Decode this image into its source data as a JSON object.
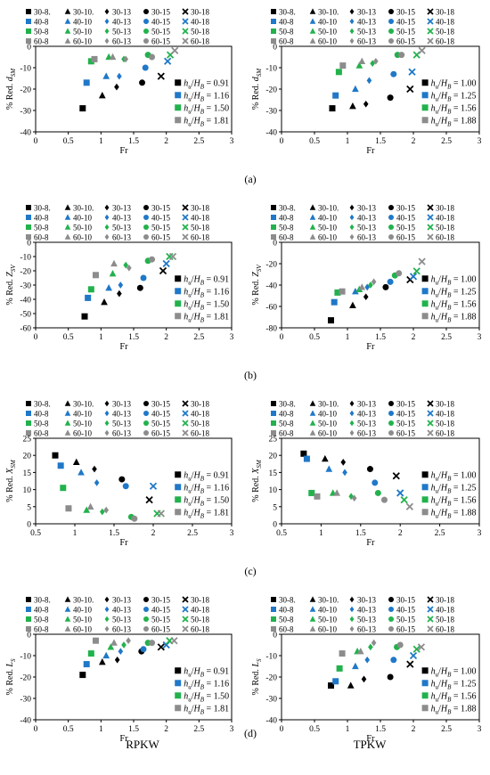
{
  "figure": {
    "colors": {
      "8": "#000000",
      "10": "#1f78c8",
      "13": "#22b24c",
      "15": "#8c8c8c",
      "18": "#a0a0a0"
    },
    "legend_rows": [
      {
        "color": "#000000",
        "items": [
          "30-8.",
          "30-10.",
          "30-13",
          "30-15",
          "30-18"
        ]
      },
      {
        "color": "#1f78c8",
        "items": [
          "40-8",
          "40-10",
          "40-13",
          "40-15",
          "40-18"
        ]
      },
      {
        "color": "#22b24c",
        "items": [
          "50-8",
          "50-10",
          "50-13",
          "50-15",
          "50-18"
        ]
      },
      {
        "color": "#8c8c8c",
        "items": [
          "60-8",
          "60-10",
          "60-13",
          "60-15",
          "60-18"
        ]
      }
    ],
    "panel_labels": [
      "(a)",
      "(b)",
      "(c)",
      "(d)"
    ],
    "column_labels": [
      "RPKW",
      "TPKW"
    ]
  },
  "chart_data": [
    {
      "id": "a-left",
      "type": "scatter",
      "xlabel": "Fr",
      "ylabel": "% Red. d_SM",
      "xlim": [
        0,
        3
      ],
      "ylim": [
        -40,
        0
      ],
      "xticks": [
        0,
        0.5,
        1,
        1.5,
        2,
        2.5,
        3
      ],
      "yticks": [
        0,
        -10,
        -20,
        -30,
        -40
      ],
      "ratio_legend": [
        "0.91",
        "1.16",
        "1.50",
        "1.81"
      ],
      "series": [
        {
          "name": "h_u/H_B = 0.91",
          "color": "#000000",
          "x": [
            0.72,
            1.02,
            1.24,
            1.63,
            1.92
          ],
          "y": [
            -29,
            -23,
            -19,
            -17,
            -14
          ]
        },
        {
          "name": "h_u/H_B = 1.16",
          "color": "#1f78c8",
          "x": [
            0.78,
            1.08,
            1.28,
            1.68,
            2.02
          ],
          "y": [
            -17,
            -14,
            -14,
            -10,
            -7
          ]
        },
        {
          "name": "h_u/H_B = 1.50",
          "color": "#22b24c",
          "x": [
            0.85,
            1.12,
            1.35,
            1.72,
            2.06
          ],
          "y": [
            -7,
            -5,
            -6,
            -4,
            -4
          ]
        },
        {
          "name": "h_u/H_B = 1.81",
          "color": "#8c8c8c",
          "x": [
            0.9,
            1.18,
            1.38,
            1.78,
            2.13
          ],
          "y": [
            -6,
            -5,
            -6,
            -5,
            -2
          ]
        }
      ]
    },
    {
      "id": "a-right",
      "type": "scatter",
      "xlabel": "Fr",
      "ylabel": "% Red. d_SM",
      "xlim": [
        0,
        3
      ],
      "ylim": [
        -40,
        0
      ],
      "xticks": [
        0,
        0.5,
        1,
        1.5,
        2,
        2.5,
        3
      ],
      "yticks": [
        0,
        -10,
        -20,
        -30,
        -40
      ],
      "ratio_legend": [
        "1.00",
        "1.25",
        "1.56",
        "1.88"
      ],
      "series": [
        {
          "name": "h_u/H_B = 1.00",
          "color": "#000000",
          "x": [
            0.77,
            1.08,
            1.28,
            1.65,
            1.95
          ],
          "y": [
            -29,
            -28,
            -27,
            -24,
            -20
          ]
        },
        {
          "name": "h_u/H_B = 1.25",
          "color": "#1f78c8",
          "x": [
            0.82,
            1.12,
            1.33,
            1.7,
            1.98
          ],
          "y": [
            -23,
            -20,
            -16,
            -13,
            -12
          ]
        },
        {
          "name": "h_u/H_B = 1.56",
          "color": "#22b24c",
          "x": [
            0.87,
            1.18,
            1.38,
            1.76,
            2.05
          ],
          "y": [
            -12,
            -9,
            -8,
            -4,
            -4
          ]
        },
        {
          "name": "h_u/H_B = 1.88",
          "color": "#8c8c8c",
          "x": [
            0.93,
            1.22,
            1.43,
            1.82,
            2.13
          ],
          "y": [
            -9,
            -7,
            -7,
            -4,
            -2
          ]
        }
      ]
    },
    {
      "id": "b-left",
      "type": "scatter",
      "xlabel": "Fr",
      "ylabel": "% Red. Z_SV",
      "xlim": [
        0,
        3
      ],
      "ylim": [
        -60,
        0
      ],
      "xticks": [
        0,
        0.5,
        1,
        1.5,
        2,
        2.5,
        3
      ],
      "yticks": [
        0,
        -10,
        -20,
        -30,
        -40,
        -50,
        -60
      ],
      "ratio_legend": [
        "0.91",
        "1.16",
        "1.50",
        "1.81"
      ],
      "series": [
        {
          "name": "h_u/H_B = 0.91",
          "color": "#000000",
          "x": [
            0.75,
            1.05,
            1.28,
            1.6,
            1.95
          ],
          "y": [
            -52,
            -42,
            -36,
            -32,
            -20
          ]
        },
        {
          "name": "h_u/H_B = 1.16",
          "color": "#1f78c8",
          "x": [
            0.8,
            1.12,
            1.3,
            1.65,
            2.0
          ],
          "y": [
            -39,
            -32,
            -30,
            -25,
            -15
          ]
        },
        {
          "name": "h_u/H_B = 1.50",
          "color": "#22b24c",
          "x": [
            0.85,
            1.18,
            1.38,
            1.72,
            2.05
          ],
          "y": [
            -33,
            -22,
            -16,
            -13,
            -10
          ]
        },
        {
          "name": "h_u/H_B = 1.81",
          "color": "#8c8c8c",
          "x": [
            0.92,
            1.2,
            1.43,
            1.78,
            2.1
          ],
          "y": [
            -23,
            -15,
            -18,
            -12,
            -10
          ]
        }
      ]
    },
    {
      "id": "b-right",
      "type": "scatter",
      "xlabel": "Fr",
      "ylabel": "% Red. Z_SV",
      "xlim": [
        0,
        3
      ],
      "ylim": [
        -80,
        0
      ],
      "xticks": [
        0,
        0.5,
        1,
        1.5,
        2,
        2.5,
        3
      ],
      "yticks": [
        0,
        -20,
        -40,
        -60,
        -80
      ],
      "ratio_legend": [
        "1.00",
        "1.25",
        "1.56",
        "1.88"
      ],
      "series": [
        {
          "name": "h_u/H_B = 1.00",
          "color": "#000000",
          "x": [
            0.75,
            1.08,
            1.28,
            1.58,
            1.95
          ],
          "y": [
            -73,
            -59,
            -51,
            -42,
            -35
          ]
        },
        {
          "name": "h_u/H_B = 1.25",
          "color": "#1f78c8",
          "x": [
            0.8,
            1.12,
            1.3,
            1.65,
            2.0
          ],
          "y": [
            -56,
            -46,
            -42,
            -37,
            -32
          ]
        },
        {
          "name": "h_u/H_B = 1.56",
          "color": "#22b24c",
          "x": [
            0.85,
            1.18,
            1.35,
            1.72,
            2.05
          ],
          "y": [
            -47,
            -44,
            -40,
            -31,
            -27
          ]
        },
        {
          "name": "h_u/H_B = 1.88",
          "color": "#8c8c8c",
          "x": [
            0.92,
            1.22,
            1.4,
            1.78,
            2.13
          ],
          "y": [
            -46,
            -42,
            -37,
            -29,
            -18
          ]
        }
      ]
    },
    {
      "id": "c-left",
      "type": "scatter",
      "xlabel": "Fr",
      "ylabel": "% Red. X_SM",
      "xlim": [
        0.5,
        3
      ],
      "ylim": [
        0,
        25
      ],
      "xticks": [
        0.5,
        1,
        1.5,
        2,
        2.5,
        3
      ],
      "yticks": [
        0,
        5,
        10,
        15,
        20,
        25
      ],
      "ratio_legend": [
        "0.91",
        "1.16",
        "1.50",
        "1.81"
      ],
      "series": [
        {
          "name": "h_u/H_B = 0.91",
          "color": "#000000",
          "x": [
            0.75,
            1.02,
            1.25,
            1.6,
            1.95
          ],
          "y": [
            20,
            18,
            16,
            13,
            7
          ]
        },
        {
          "name": "h_u/H_B = 1.16",
          "color": "#1f78c8",
          "x": [
            0.82,
            1.08,
            1.28,
            1.65,
            2.0
          ],
          "y": [
            17,
            15,
            12,
            11,
            11
          ]
        },
        {
          "name": "h_u/H_B = 1.50",
          "color": "#22b24c",
          "x": [
            0.85,
            1.15,
            1.35,
            1.72,
            2.05
          ],
          "y": [
            10.5,
            4,
            3.5,
            2,
            3
          ]
        },
        {
          "name": "h_u/H_B = 1.81",
          "color": "#8c8c8c",
          "x": [
            0.92,
            1.2,
            1.4,
            1.76,
            2.1
          ],
          "y": [
            4.5,
            5,
            4,
            1.5,
            3
          ]
        }
      ]
    },
    {
      "id": "c-right",
      "type": "scatter",
      "xlabel": "Fr",
      "ylabel": "% Red. X_SM",
      "xlim": [
        0.5,
        3
      ],
      "ylim": [
        0,
        25
      ],
      "xticks": [
        0.5,
        1,
        1.5,
        2,
        2.5,
        3
      ],
      "yticks": [
        0,
        5,
        10,
        15,
        20,
        25
      ],
      "ratio_legend": [
        "1.00",
        "1.25",
        "1.56",
        "1.88"
      ],
      "series": [
        {
          "name": "h_u/H_B = 1.00",
          "color": "#000000",
          "x": [
            0.78,
            1.05,
            1.28,
            1.62,
            1.95
          ],
          "y": [
            20.5,
            19,
            18,
            16,
            14
          ]
        },
        {
          "name": "h_u/H_B = 1.25",
          "color": "#1f78c8",
          "x": [
            0.82,
            1.1,
            1.3,
            1.68,
            2.0
          ],
          "y": [
            19,
            16,
            15,
            12,
            9
          ]
        },
        {
          "name": "h_u/H_B = 1.56",
          "color": "#22b24c",
          "x": [
            0.88,
            1.15,
            1.38,
            1.72,
            2.05
          ],
          "y": [
            9,
            9,
            8,
            9,
            7
          ]
        },
        {
          "name": "h_u/H_B = 1.88",
          "color": "#8c8c8c",
          "x": [
            0.95,
            1.2,
            1.42,
            1.8,
            2.12
          ],
          "y": [
            8,
            9,
            7.5,
            7,
            5
          ]
        }
      ]
    },
    {
      "id": "d-left",
      "type": "scatter",
      "xlabel": "Fr",
      "ylabel": "% Red. L_S",
      "xlim": [
        0,
        3
      ],
      "ylim": [
        -40,
        0
      ],
      "xticks": [
        0,
        0.5,
        1,
        1.5,
        2,
        2.5,
        3
      ],
      "yticks": [
        0,
        -10,
        -20,
        -30,
        -40
      ],
      "ratio_legend": [
        "0.91",
        "1.16",
        "1.50",
        "1.81"
      ],
      "series": [
        {
          "name": "h_u/H_B = 0.91",
          "color": "#000000",
          "x": [
            0.72,
            1.02,
            1.25,
            1.62,
            1.92
          ],
          "y": [
            -19,
            -13,
            -12,
            -8,
            -6
          ]
        },
        {
          "name": "h_u/H_B = 1.16",
          "color": "#1f78c8",
          "x": [
            0.78,
            1.08,
            1.3,
            1.65,
            2.0
          ],
          "y": [
            -14,
            -10,
            -8,
            -7,
            -5
          ]
        },
        {
          "name": "h_u/H_B = 1.50",
          "color": "#22b24c",
          "x": [
            0.85,
            1.15,
            1.35,
            1.72,
            2.05
          ],
          "y": [
            -9,
            -6,
            -5,
            -4,
            -3
          ]
        },
        {
          "name": "h_u/H_B = 1.81",
          "color": "#8c8c8c",
          "x": [
            0.92,
            1.2,
            1.42,
            1.78,
            2.12
          ],
          "y": [
            -3,
            -4,
            -3,
            -4,
            -3
          ]
        }
      ]
    },
    {
      "id": "d-right",
      "type": "scatter",
      "xlabel": "Fr",
      "ylabel": "% Red. L_S",
      "xlim": [
        0,
        3
      ],
      "ylim": [
        -40,
        0
      ],
      "xticks": [
        0,
        0.5,
        1,
        1.5,
        2,
        2.5,
        3
      ],
      "yticks": [
        0,
        -10,
        -20,
        -30,
        -40
      ],
      "ratio_legend": [
        "1.00",
        "1.25",
        "1.56",
        "1.88"
      ],
      "series": [
        {
          "name": "h_u/H_B = 1.00",
          "color": "#000000",
          "x": [
            0.75,
            1.05,
            1.25,
            1.65,
            1.95
          ],
          "y": [
            -24,
            -24,
            -21,
            -20,
            -14
          ]
        },
        {
          "name": "h_u/H_B = 1.25",
          "color": "#1f78c8",
          "x": [
            0.82,
            1.12,
            1.3,
            1.7,
            2.0
          ],
          "y": [
            -22,
            -15,
            -12,
            -12,
            -10
          ]
        },
        {
          "name": "h_u/H_B = 1.56",
          "color": "#22b24c",
          "x": [
            0.88,
            1.15,
            1.35,
            1.75,
            2.05
          ],
          "y": [
            -16,
            -8,
            -6,
            -6,
            -7
          ]
        },
        {
          "name": "h_u/H_B = 1.88",
          "color": "#8c8c8c",
          "x": [
            0.92,
            1.2,
            1.4,
            1.8,
            2.12
          ],
          "y": [
            -9,
            -8,
            -4,
            -5,
            -6
          ]
        }
      ]
    }
  ]
}
